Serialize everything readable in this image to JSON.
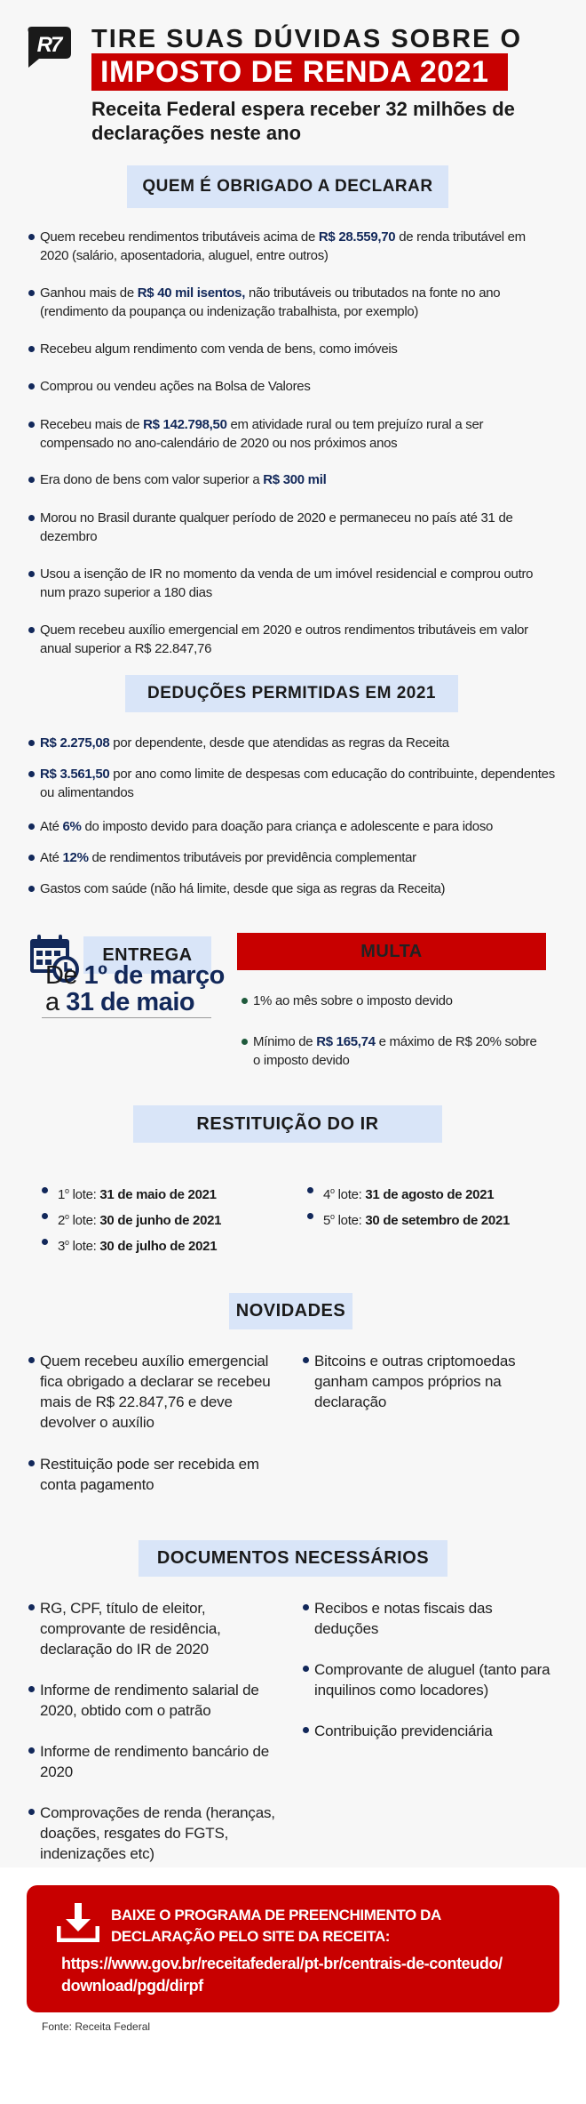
{
  "header": {
    "logo_text": "R7",
    "title_line1": "TIRE SUAS DÚVIDAS SOBRE O",
    "title_line2": "IMPOSTO DE RENDA 2021",
    "subtitle": "Receita Federal espera receber 32 milhões de declarações neste ano"
  },
  "obrigados": {
    "title": "QUEM É OBRIGADO A DECLARAR",
    "items": [
      {
        "pre": "Quem recebeu rendimentos tributáveis acima de ",
        "bold": "R$ 28.559,70",
        "post": " de renda tributável em 2020 (salário, aposentadoria, aluguel, entre outros)"
      },
      {
        "pre": "Ganhou mais de ",
        "bold": "R$ 40 mil isentos,",
        "post": " não tributáveis ou tributados na fonte no ano (rendimento da poupança ou indenização trabalhista, por exemplo)"
      },
      {
        "pre": "Recebeu algum rendimento com venda de bens, como imóveis",
        "bold": "",
        "post": ""
      },
      {
        "pre": "Comprou ou vendeu ações na Bolsa de Valores",
        "bold": "",
        "post": ""
      },
      {
        "pre": "Recebeu mais de ",
        "bold": "R$ 142.798,50",
        "post": " em atividade rural ou tem prejuízo rural a ser compensado no ano-calendário de 2020 ou nos próximos anos"
      },
      {
        "pre": "Era dono de bens com valor superior a ",
        "bold": "R$ 300 mil",
        "post": ""
      },
      {
        "pre": "Morou no Brasil durante qualquer período de 2020 e permaneceu no país até 31 de dezembro",
        "bold": "",
        "post": ""
      },
      {
        "pre": "Usou a isenção de IR no momento da venda de um imóvel residencial e comprou outro num prazo superior a 180 dias",
        "bold": "",
        "post": ""
      },
      {
        "pre": "Quem recebeu auxílio emergencial em 2020 e outros rendimentos tributáveis em valor anual superior a R$ 22.847,76",
        "bold": "",
        "post": ""
      }
    ]
  },
  "deducoes": {
    "title": "DEDUÇÕES PERMITIDAS EM 2021",
    "items": [
      {
        "pre": "",
        "bold": "R$ 2.275,08",
        "post": " por dependente, desde que atendidas as regras da Receita"
      },
      {
        "pre": "",
        "bold": "R$ 3.561,50",
        "post": " por ano como limite de despesas com educação do contribuinte, dependentes ou alimentandos"
      },
      {
        "pre": "Até ",
        "bold": "6%",
        "post": " do imposto devido para doação para criança e adolescente e para idoso"
      },
      {
        "pre": "Até ",
        "bold": "12%",
        "post": " de rendimentos tributáveis por previdência complementar"
      },
      {
        "pre": "Gastos com saúde (não há limite, desde que siga as regras da Receita)",
        "bold": "",
        "post": ""
      }
    ]
  },
  "entrega": {
    "title": "ENTREGA",
    "line1_pre": "De ",
    "line1_bold": "1º de março",
    "line2_pre": "a ",
    "line2_bold": "31 de maio"
  },
  "multa": {
    "title": "MULTA",
    "items": [
      {
        "pre": "1% ao mês sobre o imposto devido",
        "bold": "",
        "post": ""
      },
      {
        "pre": "Mínimo de ",
        "bold": "R$ 165,74",
        "post": " e máximo de R$ 20% sobre o imposto devido"
      }
    ]
  },
  "restituicao": {
    "title": "RESTITUIÇÃO DO IR",
    "lotes": [
      {
        "num": "1",
        "label": "lote:",
        "date": "31 de maio de 2021"
      },
      {
        "num": "2",
        "label": "lote:",
        "date": "30 de junho de 2021"
      },
      {
        "num": "3",
        "label": "lote:",
        "date": "30 de julho de 2021"
      },
      {
        "num": "4",
        "label": "lote:",
        "date": "31 de agosto de 2021"
      },
      {
        "num": "5",
        "label": "lote:",
        "date": "30 de setembro de 2021"
      }
    ],
    "ordinal": "o"
  },
  "novidades": {
    "title": "NOVIDADES",
    "items": [
      "Quem recebeu auxílio emergencial fica obrigado a declarar se recebeu mais de R$ 22.847,76 e deve devolver o auxílio",
      "Restituição pode ser recebida em conta pagamento",
      "Bitcoins e outras criptomoedas ganham campos próprios na declaração"
    ]
  },
  "documentos": {
    "title": "DOCUMENTOS NECESSÁRIOS",
    "items": [
      "RG, CPF, título de eleitor, comprovante de residência, declaração do IR de 2020",
      "Informe de rendimento salarial de 2020, obtido com o patrão",
      "Informe de rendimento bancário de 2020",
      "Comprovações de renda (heranças, doações, resgates do FGTS, indenizações etc)",
      "Recibos e notas fiscais das deduções",
      "Comprovante de aluguel (tanto para inquilinos como locadores)",
      "Contribuição previdenciária"
    ]
  },
  "download": {
    "icon": "download-icon",
    "title": "BAIXE O PROGRAMA DE PREENCHIMENTO DA DECLARAÇÃO PELO SITE DA RECEITA:",
    "url": "https://www.gov.br/receitafederal/pt-br/centrais-de-conteudo/ download/pgd/dirpf"
  },
  "source": "Fonte: Receita Federal",
  "colors": {
    "red": "#c80000",
    "navy": "#12285a",
    "header_box": "#d9e5f8",
    "background": "#f7f7f7"
  }
}
